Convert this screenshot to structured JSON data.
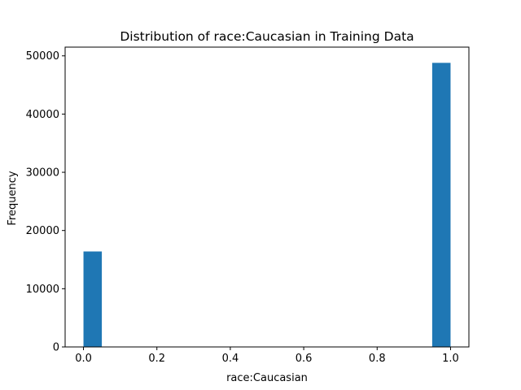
{
  "chart_data": {
    "type": "bar",
    "title": "Distribution of race:Caucasian in Training Data",
    "xlabel": "race:Caucasian",
    "ylabel": "Frequency",
    "xlim": [
      -0.05,
      1.05
    ],
    "ylim": [
      0,
      51500
    ],
    "x_ticks": [
      0.0,
      0.2,
      0.4,
      0.6,
      0.8,
      1.0
    ],
    "x_tick_labels": [
      "0.0",
      "0.2",
      "0.4",
      "0.6",
      "0.8",
      "1.0"
    ],
    "y_ticks": [
      0,
      10000,
      20000,
      30000,
      40000,
      50000
    ],
    "y_tick_labels": [
      "0",
      "10000",
      "20000",
      "30000",
      "40000",
      "50000"
    ],
    "bins": [
      {
        "x0": 0.0,
        "x1": 0.05,
        "count": 16400
      },
      {
        "x0": 0.95,
        "x1": 1.0,
        "count": 48800
      }
    ],
    "bar_color": "#1f77b4",
    "grid": false,
    "legend": "none"
  }
}
